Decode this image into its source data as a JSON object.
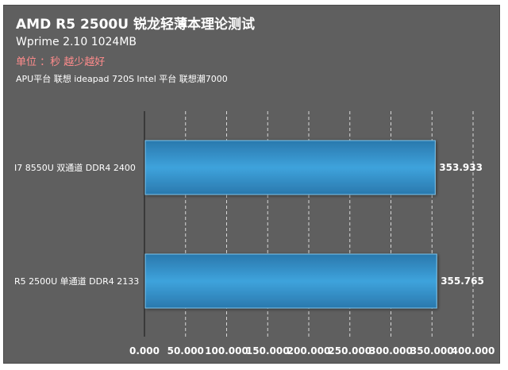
{
  "header": {
    "title": "AMD R5 2500U 锐龙轻薄本理论测试",
    "subtitle": "Wprime 2.10 1024MB",
    "unit_note": "单位 ：秒   越少越好",
    "platform_note": "APU平台 联想 ideapad 720S Intel  平台 联想潮7000"
  },
  "colors": {
    "background": "#5f5f5f",
    "bar": "#2f8bc4",
    "bar_highlight": "#3ea3dc",
    "grid": "#ffffff",
    "text": "#ffffff",
    "unit_text": "#ff8c8c"
  },
  "chart_data": {
    "type": "bar",
    "orientation": "horizontal",
    "categories": [
      "I7 8550U 双通道 DDR4 2400",
      "R5 2500U 单通道 DDR4 2133"
    ],
    "values": [
      353.933,
      355.765
    ],
    "value_labels": [
      "353.933",
      "355.765"
    ],
    "xlim": [
      0,
      400
    ],
    "xticks": [
      0,
      50,
      100,
      150,
      200,
      250,
      300,
      350,
      400
    ],
    "xtick_labels": [
      "0.000",
      "50.000",
      "100.000",
      "150.000",
      "200.000",
      "250.000",
      "300.000",
      "350.000",
      "400.000"
    ],
    "grid": "vertical-dashed",
    "legend": "none"
  }
}
